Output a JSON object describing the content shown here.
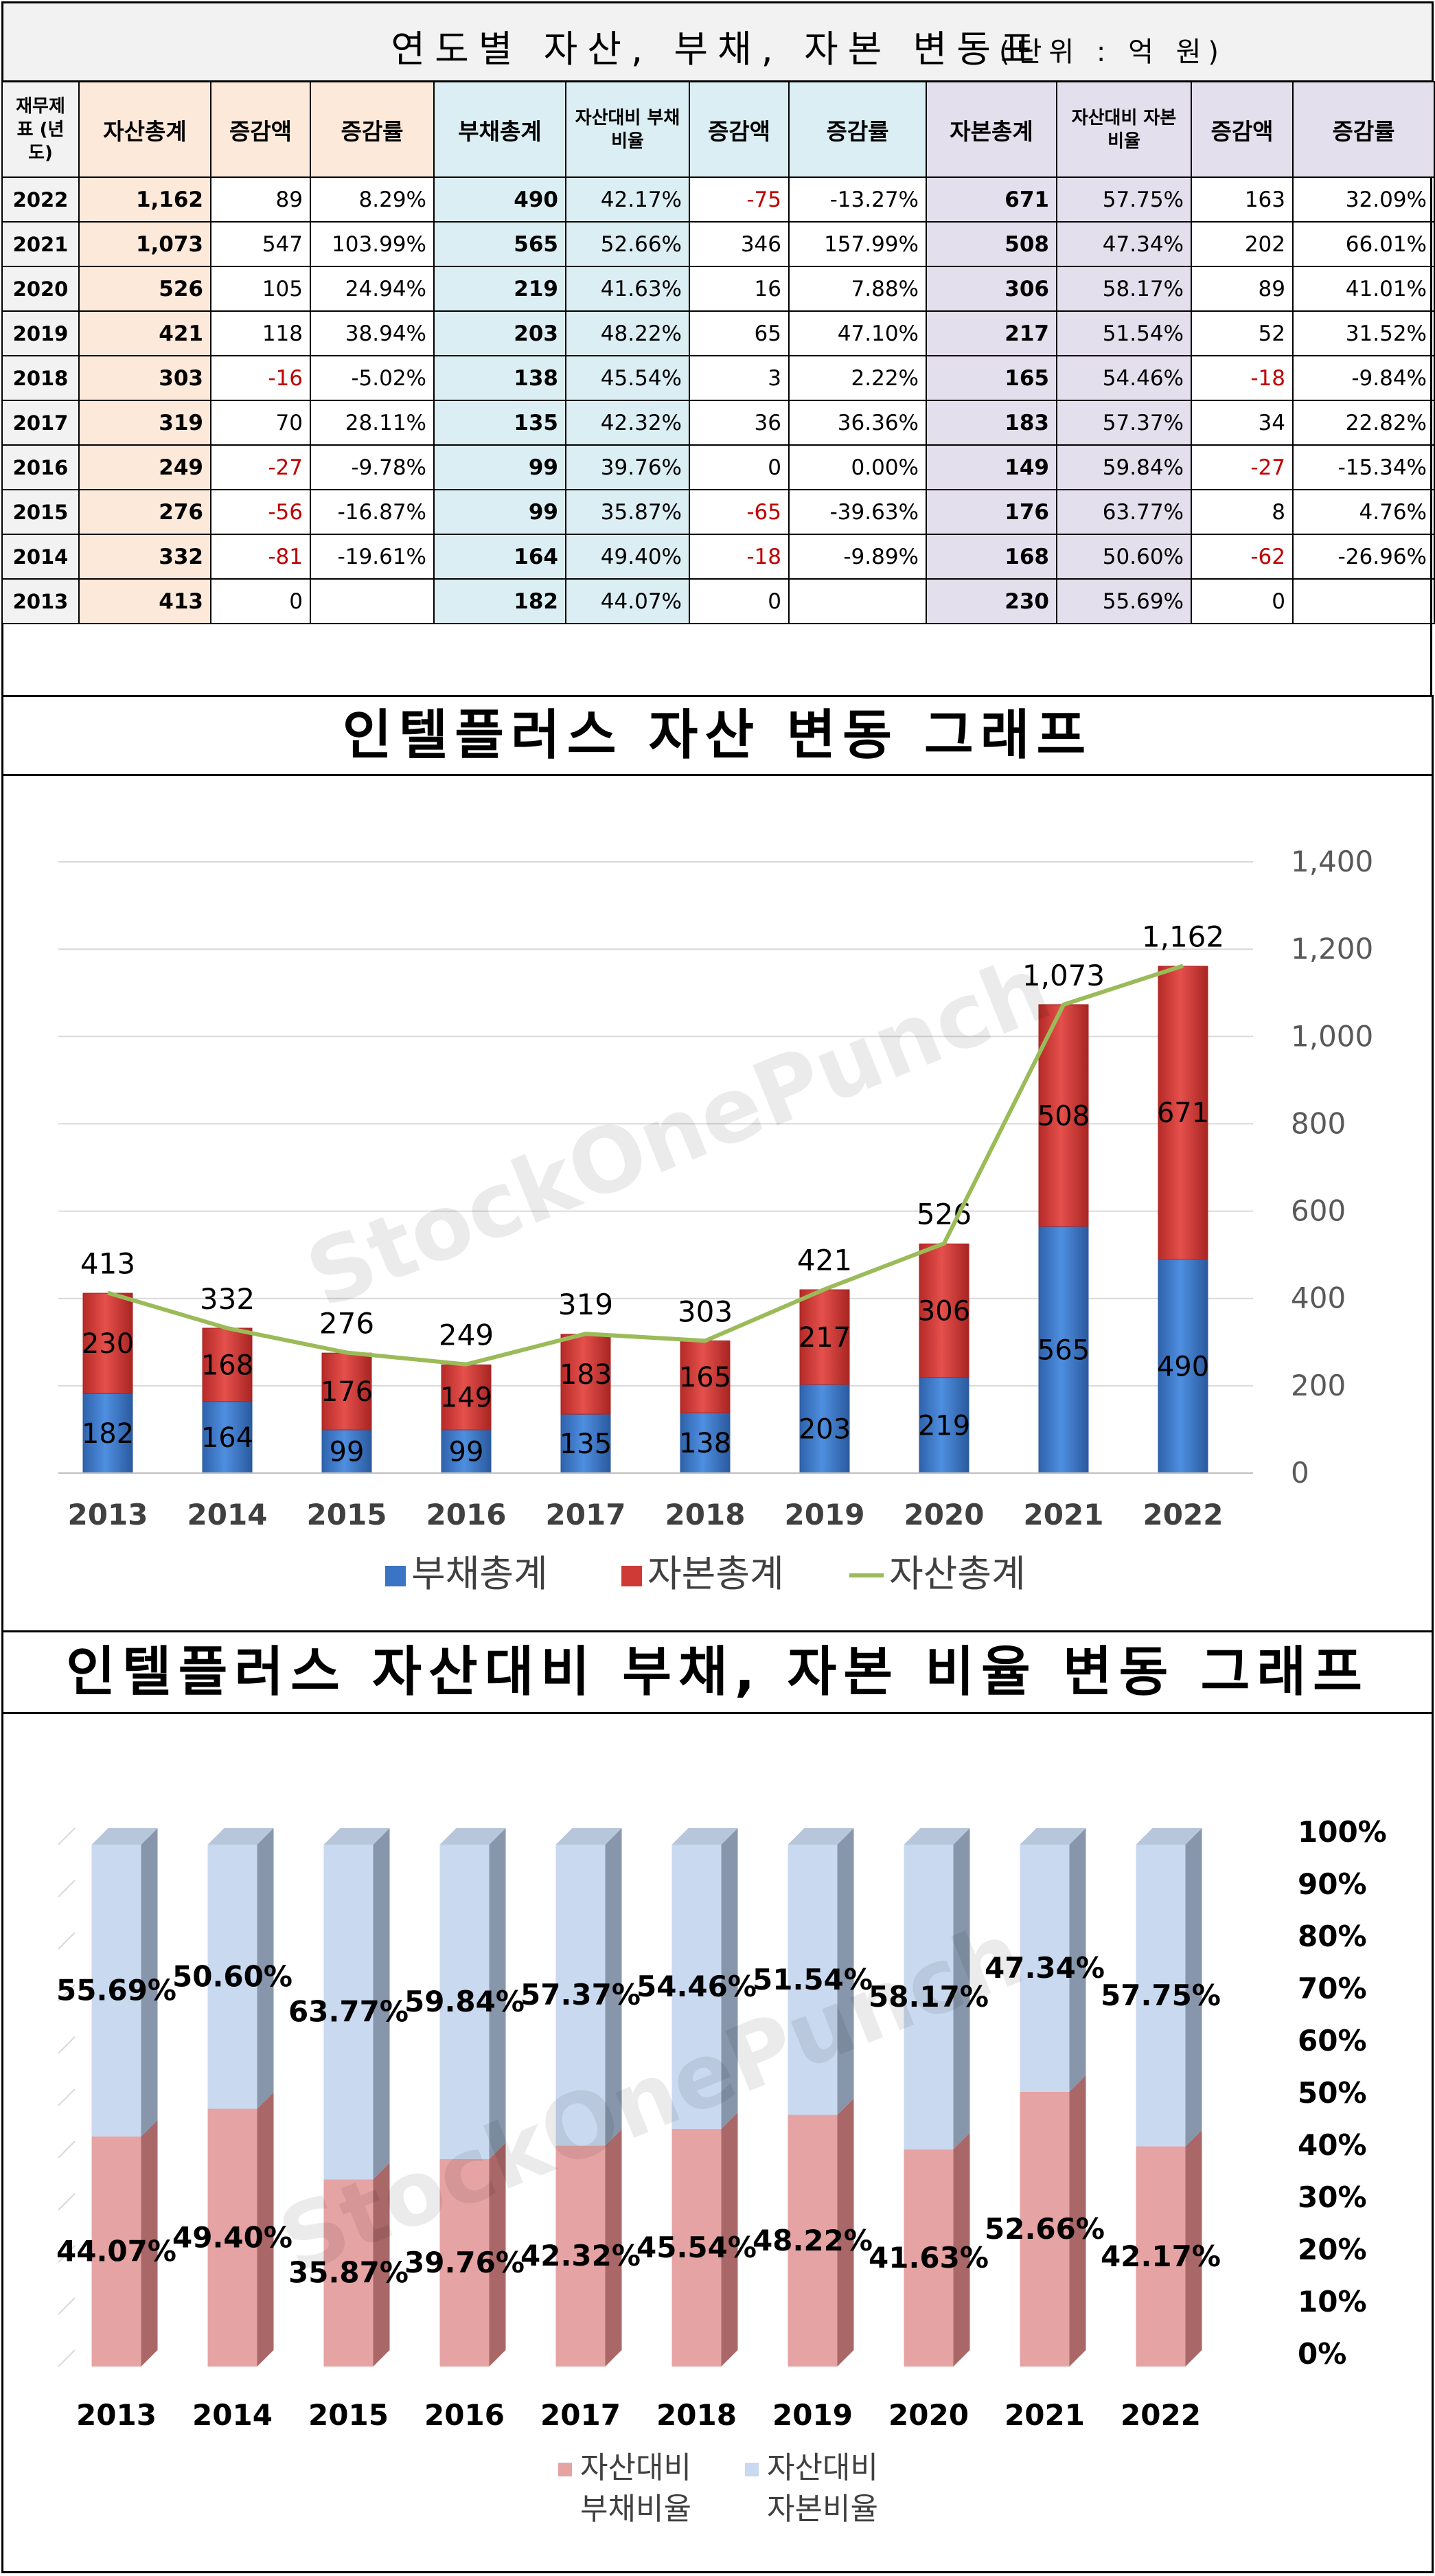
{
  "table": {
    "title": "연도별 자산, 부채, 자본 변동표",
    "unit": "(단위 : 억 원)",
    "headers": [
      "재무제표 (년도)",
      "자산총계",
      "증감액",
      "증감률",
      "부채총계",
      "자산대비 부채비율",
      "증감액",
      "증감률",
      "자본총계",
      "자산대비 자본비율",
      "증감액",
      "증감률"
    ],
    "rows": [
      [
        "2022",
        "1,162",
        "89",
        "8.29%",
        "490",
        "42.17%",
        "-75",
        "-13.27%",
        "671",
        "57.75%",
        "163",
        "32.09%"
      ],
      [
        "2021",
        "1,073",
        "547",
        "103.99%",
        "565",
        "52.66%",
        "346",
        "157.99%",
        "508",
        "47.34%",
        "202",
        "66.01%"
      ],
      [
        "2020",
        "526",
        "105",
        "24.94%",
        "219",
        "41.63%",
        "16",
        "7.88%",
        "306",
        "58.17%",
        "89",
        "41.01%"
      ],
      [
        "2019",
        "421",
        "118",
        "38.94%",
        "203",
        "48.22%",
        "65",
        "47.10%",
        "217",
        "51.54%",
        "52",
        "31.52%"
      ],
      [
        "2018",
        "303",
        "-16",
        "-5.02%",
        "138",
        "45.54%",
        "3",
        "2.22%",
        "165",
        "54.46%",
        "-18",
        "-9.84%"
      ],
      [
        "2017",
        "319",
        "70",
        "28.11%",
        "135",
        "42.32%",
        "36",
        "36.36%",
        "183",
        "57.37%",
        "34",
        "22.82%"
      ],
      [
        "2016",
        "249",
        "-27",
        "-9.78%",
        "99",
        "39.76%",
        "0",
        "0.00%",
        "149",
        "59.84%",
        "-27",
        "-15.34%"
      ],
      [
        "2015",
        "276",
        "-56",
        "-16.87%",
        "99",
        "35.87%",
        "-65",
        "-39.63%",
        "176",
        "63.77%",
        "8",
        "4.76%"
      ],
      [
        "2014",
        "332",
        "-81",
        "-19.61%",
        "164",
        "49.40%",
        "-18",
        "-9.89%",
        "168",
        "50.60%",
        "-62",
        "-26.96%"
      ],
      [
        "2013",
        "413",
        "0",
        "",
        "182",
        "44.07%",
        "0",
        "",
        "230",
        "55.69%",
        "0",
        ""
      ]
    ]
  },
  "watermark": "StockOnePunch",
  "colors": {
    "liability": "#3a74c4",
    "equity": "#d03a36",
    "asset_line": "#9bbb59",
    "liab_ratio": "#e6a3a3",
    "equity_ratio": "#c9d9ef",
    "negative": "#c00000"
  },
  "chart_data": [
    {
      "type": "bar",
      "title": "인텔플러스 자산 변동 그래프",
      "categories": [
        "2013",
        "2014",
        "2015",
        "2016",
        "2017",
        "2018",
        "2019",
        "2020",
        "2021",
        "2022"
      ],
      "stacked": true,
      "series": [
        {
          "name": "부채총계",
          "kind": "bar",
          "values": [
            182,
            164,
            99,
            99,
            135,
            138,
            203,
            219,
            565,
            490
          ]
        },
        {
          "name": "자본총계",
          "kind": "bar",
          "values": [
            230,
            168,
            176,
            149,
            183,
            165,
            217,
            306,
            508,
            671
          ]
        },
        {
          "name": "자산총계",
          "kind": "line",
          "values": [
            413,
            332,
            276,
            249,
            319,
            303,
            421,
            526,
            1073,
            1162
          ],
          "labels": [
            "413",
            "332",
            "276",
            "249",
            "319",
            "303",
            "421",
            "526",
            "1,073",
            "1,162"
          ]
        }
      ],
      "ylim": [
        0,
        1400
      ],
      "yticks": [
        "0",
        "200",
        "400",
        "600",
        "800",
        "1,000",
        "1,200",
        "1,400"
      ],
      "yaxis_side": "right",
      "grid": true,
      "legend": "bottom"
    },
    {
      "type": "bar",
      "title": "인텔플러스 자산대비 부채, 자본 비율 변동 그래프",
      "categories": [
        "2013",
        "2014",
        "2015",
        "2016",
        "2017",
        "2018",
        "2019",
        "2020",
        "2021",
        "2022"
      ],
      "stacked": true,
      "percent": true,
      "series": [
        {
          "name": "자산대비 부채비율",
          "values": [
            44.07,
            49.4,
            35.87,
            39.76,
            42.32,
            45.54,
            48.22,
            41.63,
            52.66,
            42.17
          ],
          "labels": [
            "44.07%",
            "49.40%",
            "35.87%",
            "39.76%",
            "42.32%",
            "45.54%",
            "48.22%",
            "41.63%",
            "52.66%",
            "42.17%"
          ]
        },
        {
          "name": "자산대비 자본비율",
          "values": [
            55.69,
            50.6,
            63.77,
            59.84,
            57.37,
            54.46,
            51.54,
            58.17,
            47.34,
            57.75
          ],
          "labels": [
            "55.69%",
            "50.60%",
            "63.77%",
            "59.84%",
            "57.37%",
            "54.46%",
            "51.54%",
            "58.17%",
            "47.34%",
            "57.75%"
          ]
        }
      ],
      "ylim": [
        0,
        100
      ],
      "yticks": [
        "0%",
        "10%",
        "20%",
        "30%",
        "40%",
        "50%",
        "60%",
        "70%",
        "80%",
        "90%",
        "100%"
      ],
      "yaxis_side": "right",
      "legend": "bottom",
      "legend_lines": [
        [
          "자산대비",
          "부채비율"
        ],
        [
          "자산대비",
          "자본비율"
        ]
      ]
    }
  ]
}
